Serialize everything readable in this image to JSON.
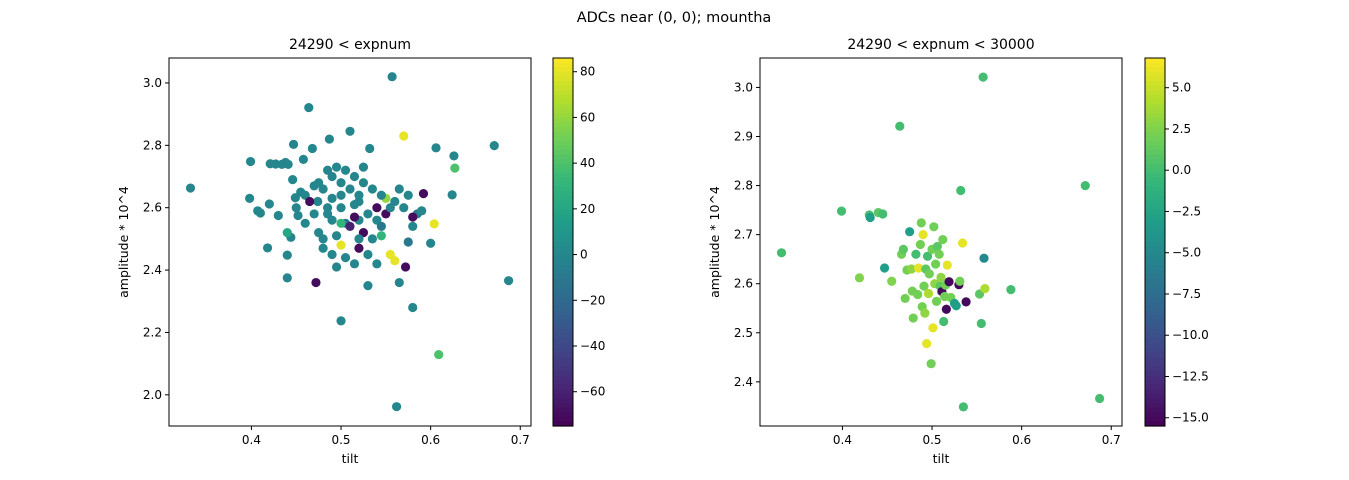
{
  "suptitle": "ADCs near (0, 0); mountha",
  "chart_data": [
    {
      "type": "scatter",
      "title": "24290 < expnum",
      "xlabel": "tilt",
      "ylabel": "amplitude * 10^4",
      "xlim": [
        0.308,
        0.712
      ],
      "ylim": [
        1.9,
        3.08
      ],
      "xticks": [
        0.4,
        0.5,
        0.6,
        0.7
      ],
      "yticks": [
        2.0,
        2.2,
        2.4,
        2.6,
        2.8,
        3.0
      ],
      "colormap": "viridis",
      "color_range": [
        -75,
        86
      ],
      "colorbar_ticks": [
        -60,
        -40,
        -20,
        0,
        20,
        40,
        60,
        80
      ],
      "points": [
        {
          "x": 0.332,
          "y": 2.663,
          "c": 0
        },
        {
          "x": 0.398,
          "y": 2.63,
          "c": 0
        },
        {
          "x": 0.399,
          "y": 2.748,
          "c": 0
        },
        {
          "x": 0.407,
          "y": 2.59,
          "c": 0
        },
        {
          "x": 0.41,
          "y": 2.583,
          "c": 0
        },
        {
          "x": 0.418,
          "y": 2.471,
          "c": 0
        },
        {
          "x": 0.42,
          "y": 2.612,
          "c": 0
        },
        {
          "x": 0.421,
          "y": 2.741,
          "c": 0
        },
        {
          "x": 0.427,
          "y": 2.74,
          "c": 0
        },
        {
          "x": 0.43,
          "y": 2.575,
          "c": 0
        },
        {
          "x": 0.434,
          "y": 2.739,
          "c": 0
        },
        {
          "x": 0.438,
          "y": 2.745,
          "c": 0
        },
        {
          "x": 0.441,
          "y": 2.739,
          "c": 0
        },
        {
          "x": 0.44,
          "y": 2.375,
          "c": 0
        },
        {
          "x": 0.44,
          "y": 2.448,
          "c": 0
        },
        {
          "x": 0.444,
          "y": 2.505,
          "c": 0
        },
        {
          "x": 0.446,
          "y": 2.69,
          "c": 0
        },
        {
          "x": 0.447,
          "y": 2.803,
          "c": 0
        },
        {
          "x": 0.449,
          "y": 2.632,
          "c": 0
        },
        {
          "x": 0.452,
          "y": 2.575,
          "c": 0
        },
        {
          "x": 0.458,
          "y": 2.755,
          "c": 0
        },
        {
          "x": 0.464,
          "y": 2.921,
          "c": 0
        },
        {
          "x": 0.468,
          "y": 2.79,
          "c": 0
        },
        {
          "x": 0.47,
          "y": 2.67,
          "c": 0
        },
        {
          "x": 0.472,
          "y": 2.36,
          "c": -70
        },
        {
          "x": 0.474,
          "y": 2.62,
          "c": 0
        },
        {
          "x": 0.48,
          "y": 2.5,
          "c": 0
        },
        {
          "x": 0.485,
          "y": 2.58,
          "c": 0
        },
        {
          "x": 0.487,
          "y": 2.82,
          "c": 0
        },
        {
          "x": 0.49,
          "y": 2.63,
          "c": 0
        },
        {
          "x": 0.495,
          "y": 2.41,
          "c": 0
        },
        {
          "x": 0.5,
          "y": 2.237,
          "c": 0
        },
        {
          "x": 0.505,
          "y": 2.55,
          "c": -10
        },
        {
          "x": 0.51,
          "y": 2.845,
          "c": 0
        },
        {
          "x": 0.515,
          "y": 2.61,
          "c": 0
        },
        {
          "x": 0.52,
          "y": 2.47,
          "c": -70
        },
        {
          "x": 0.525,
          "y": 2.73,
          "c": 0
        },
        {
          "x": 0.53,
          "y": 2.35,
          "c": 0
        },
        {
          "x": 0.532,
          "y": 2.79,
          "c": 0
        },
        {
          "x": 0.54,
          "y": 2.6,
          "c": -70
        },
        {
          "x": 0.545,
          "y": 2.51,
          "c": 30
        },
        {
          "x": 0.55,
          "y": 2.63,
          "c": 60
        },
        {
          "x": 0.555,
          "y": 2.45,
          "c": 80
        },
        {
          "x": 0.557,
          "y": 3.02,
          "c": 0
        },
        {
          "x": 0.56,
          "y": 2.43,
          "c": 80
        },
        {
          "x": 0.562,
          "y": 1.962,
          "c": 0
        },
        {
          "x": 0.565,
          "y": 2.36,
          "c": 0
        },
        {
          "x": 0.57,
          "y": 2.83,
          "c": 80
        },
        {
          "x": 0.572,
          "y": 2.41,
          "c": -70
        },
        {
          "x": 0.575,
          "y": 2.49,
          "c": -10
        },
        {
          "x": 0.58,
          "y": 2.28,
          "c": 0
        },
        {
          "x": 0.585,
          "y": 2.58,
          "c": -10
        },
        {
          "x": 0.592,
          "y": 2.645,
          "c": -70
        },
        {
          "x": 0.6,
          "y": 2.486,
          "c": 0
        },
        {
          "x": 0.604,
          "y": 2.548,
          "c": 80
        },
        {
          "x": 0.606,
          "y": 2.792,
          "c": 0
        },
        {
          "x": 0.609,
          "y": 2.129,
          "c": 40
        },
        {
          "x": 0.624,
          "y": 2.641,
          "c": 0
        },
        {
          "x": 0.626,
          "y": 2.766,
          "c": 0
        },
        {
          "x": 0.627,
          "y": 2.727,
          "c": 40
        },
        {
          "x": 0.671,
          "y": 2.799,
          "c": 0
        },
        {
          "x": 0.687,
          "y": 2.366,
          "c": 0
        },
        {
          "x": 0.48,
          "y": 2.66,
          "c": 0
        },
        {
          "x": 0.49,
          "y": 2.7,
          "c": 0
        },
        {
          "x": 0.5,
          "y": 2.68,
          "c": 0
        },
        {
          "x": 0.51,
          "y": 2.66,
          "c": 0
        },
        {
          "x": 0.52,
          "y": 2.62,
          "c": 0
        },
        {
          "x": 0.53,
          "y": 2.58,
          "c": 0
        },
        {
          "x": 0.5,
          "y": 2.6,
          "c": 0
        },
        {
          "x": 0.49,
          "y": 2.56,
          "c": 0
        },
        {
          "x": 0.51,
          "y": 2.54,
          "c": -60
        },
        {
          "x": 0.52,
          "y": 2.56,
          "c": 0
        },
        {
          "x": 0.47,
          "y": 2.58,
          "c": 0
        },
        {
          "x": 0.46,
          "y": 2.64,
          "c": 0
        },
        {
          "x": 0.54,
          "y": 2.56,
          "c": 0
        },
        {
          "x": 0.55,
          "y": 2.58,
          "c": -70
        },
        {
          "x": 0.56,
          "y": 2.62,
          "c": 0
        },
        {
          "x": 0.565,
          "y": 2.66,
          "c": 0
        },
        {
          "x": 0.57,
          "y": 2.6,
          "c": 0
        },
        {
          "x": 0.58,
          "y": 2.54,
          "c": 0
        },
        {
          "x": 0.5,
          "y": 2.48,
          "c": 80
        },
        {
          "x": 0.49,
          "y": 2.45,
          "c": 0
        },
        {
          "x": 0.48,
          "y": 2.47,
          "c": 0
        },
        {
          "x": 0.505,
          "y": 2.44,
          "c": 0
        },
        {
          "x": 0.515,
          "y": 2.42,
          "c": 0
        },
        {
          "x": 0.53,
          "y": 2.45,
          "c": 0
        },
        {
          "x": 0.54,
          "y": 2.42,
          "c": 0
        },
        {
          "x": 0.475,
          "y": 2.52,
          "c": 0
        },
        {
          "x": 0.46,
          "y": 2.55,
          "c": 0
        },
        {
          "x": 0.465,
          "y": 2.62,
          "c": -70
        },
        {
          "x": 0.485,
          "y": 2.72,
          "c": 0
        },
        {
          "x": 0.495,
          "y": 2.73,
          "c": 0
        },
        {
          "x": 0.505,
          "y": 2.72,
          "c": 0
        },
        {
          "x": 0.515,
          "y": 2.7,
          "c": 0
        },
        {
          "x": 0.525,
          "y": 2.68,
          "c": 0
        },
        {
          "x": 0.535,
          "y": 2.66,
          "c": 0
        },
        {
          "x": 0.545,
          "y": 2.64,
          "c": 0
        },
        {
          "x": 0.555,
          "y": 2.6,
          "c": 0
        },
        {
          "x": 0.525,
          "y": 2.52,
          "c": -70
        },
        {
          "x": 0.535,
          "y": 2.5,
          "c": 0
        },
        {
          "x": 0.545,
          "y": 2.54,
          "c": -10
        },
        {
          "x": 0.495,
          "y": 2.51,
          "c": 0
        },
        {
          "x": 0.485,
          "y": 2.6,
          "c": 0
        },
        {
          "x": 0.475,
          "y": 2.68,
          "c": 0
        },
        {
          "x": 0.45,
          "y": 2.6,
          "c": 0
        },
        {
          "x": 0.44,
          "y": 2.52,
          "c": 20
        },
        {
          "x": 0.455,
          "y": 2.65,
          "c": 0
        },
        {
          "x": 0.515,
          "y": 2.57,
          "c": -70
        },
        {
          "x": 0.52,
          "y": 2.5,
          "c": 0
        },
        {
          "x": 0.575,
          "y": 2.64,
          "c": 0
        },
        {
          "x": 0.58,
          "y": 2.57,
          "c": -70
        },
        {
          "x": 0.59,
          "y": 2.59,
          "c": 0
        },
        {
          "x": 0.5,
          "y": 2.64,
          "c": 0
        },
        {
          "x": 0.52,
          "y": 2.64,
          "c": 0
        },
        {
          "x": 0.5,
          "y": 2.55,
          "c": 30
        }
      ]
    },
    {
      "type": "scatter",
      "title": "24290 < expnum < 30000",
      "xlabel": "tilt",
      "ylabel": "amplitude * 10^4",
      "xlim": [
        0.308,
        0.712
      ],
      "ylim": [
        2.31,
        3.06
      ],
      "xticks": [
        0.4,
        0.5,
        0.6,
        0.7
      ],
      "yticks": [
        2.4,
        2.5,
        2.6,
        2.7,
        2.8,
        2.9,
        3.0
      ],
      "colormap": "viridis",
      "color_range": [
        -15.5,
        6.8
      ],
      "colorbar_ticks": [
        -15.0,
        -12.5,
        -10.0,
        -7.5,
        -5.0,
        -2.5,
        0.0,
        2.5,
        5.0
      ],
      "points": [
        {
          "x": 0.332,
          "y": 2.663,
          "c": 0
        },
        {
          "x": 0.399,
          "y": 2.748,
          "c": 0
        },
        {
          "x": 0.419,
          "y": 2.612,
          "c": 2.5
        },
        {
          "x": 0.43,
          "y": 2.74,
          "c": 0
        },
        {
          "x": 0.431,
          "y": 2.735,
          "c": -3
        },
        {
          "x": 0.44,
          "y": 2.745,
          "c": 1
        },
        {
          "x": 0.445,
          "y": 2.742,
          "c": 0
        },
        {
          "x": 0.447,
          "y": 2.632,
          "c": -3
        },
        {
          "x": 0.455,
          "y": 2.605,
          "c": 2.5
        },
        {
          "x": 0.464,
          "y": 2.921,
          "c": 0
        },
        {
          "x": 0.466,
          "y": 2.66,
          "c": 2
        },
        {
          "x": 0.468,
          "y": 2.67,
          "c": 1
        },
        {
          "x": 0.47,
          "y": 2.57,
          "c": 2
        },
        {
          "x": 0.472,
          "y": 2.628,
          "c": 2
        },
        {
          "x": 0.475,
          "y": 2.706,
          "c": -3
        },
        {
          "x": 0.477,
          "y": 2.63,
          "c": 3
        },
        {
          "x": 0.478,
          "y": 2.585,
          "c": 2
        },
        {
          "x": 0.479,
          "y": 2.53,
          "c": 2
        },
        {
          "x": 0.482,
          "y": 2.66,
          "c": 0
        },
        {
          "x": 0.484,
          "y": 2.578,
          "c": 2
        },
        {
          "x": 0.485,
          "y": 2.632,
          "c": 6
        },
        {
          "x": 0.487,
          "y": 2.68,
          "c": 2
        },
        {
          "x": 0.488,
          "y": 2.724,
          "c": 2
        },
        {
          "x": 0.489,
          "y": 2.553,
          "c": 2
        },
        {
          "x": 0.49,
          "y": 2.7,
          "c": 6
        },
        {
          "x": 0.491,
          "y": 2.595,
          "c": 2
        },
        {
          "x": 0.492,
          "y": 2.54,
          "c": 3
        },
        {
          "x": 0.493,
          "y": 2.63,
          "c": 1
        },
        {
          "x": 0.494,
          "y": 2.478,
          "c": 6
        },
        {
          "x": 0.495,
          "y": 2.656,
          "c": 0
        },
        {
          "x": 0.496,
          "y": 2.58,
          "c": 4
        },
        {
          "x": 0.497,
          "y": 2.62,
          "c": 2
        },
        {
          "x": 0.499,
          "y": 2.437,
          "c": 2
        },
        {
          "x": 0.5,
          "y": 2.67,
          "c": 2
        },
        {
          "x": 0.501,
          "y": 2.51,
          "c": 6
        },
        {
          "x": 0.502,
          "y": 2.716,
          "c": 2
        },
        {
          "x": 0.503,
          "y": 2.6,
          "c": 3
        },
        {
          "x": 0.504,
          "y": 2.64,
          "c": 2
        },
        {
          "x": 0.505,
          "y": 2.564,
          "c": 2
        },
        {
          "x": 0.506,
          "y": 2.676,
          "c": 1
        },
        {
          "x": 0.508,
          "y": 2.66,
          "c": 2
        },
        {
          "x": 0.509,
          "y": 2.595,
          "c": 1
        },
        {
          "x": 0.51,
          "y": 2.613,
          "c": 3
        },
        {
          "x": 0.511,
          "y": 2.584,
          "c": -15
        },
        {
          "x": 0.512,
          "y": 2.69,
          "c": 2
        },
        {
          "x": 0.513,
          "y": 2.523,
          "c": 0
        },
        {
          "x": 0.514,
          "y": 2.574,
          "c": 2
        },
        {
          "x": 0.515,
          "y": 2.597,
          "c": 2
        },
        {
          "x": 0.516,
          "y": 2.548,
          "c": -15
        },
        {
          "x": 0.517,
          "y": 2.638,
          "c": 6
        },
        {
          "x": 0.519,
          "y": 2.604,
          "c": -15
        },
        {
          "x": 0.521,
          "y": 2.572,
          "c": 2
        },
        {
          "x": 0.525,
          "y": 2.56,
          "c": -3
        },
        {
          "x": 0.527,
          "y": 2.555,
          "c": -3
        },
        {
          "x": 0.53,
          "y": 2.598,
          "c": -15
        },
        {
          "x": 0.531,
          "y": 2.605,
          "c": 2
        },
        {
          "x": 0.532,
          "y": 2.79,
          "c": 0
        },
        {
          "x": 0.534,
          "y": 2.683,
          "c": 6
        },
        {
          "x": 0.535,
          "y": 2.349,
          "c": 0
        },
        {
          "x": 0.538,
          "y": 2.563,
          "c": -15
        },
        {
          "x": 0.553,
          "y": 2.579,
          "c": 1
        },
        {
          "x": 0.555,
          "y": 2.519,
          "c": 0
        },
        {
          "x": 0.557,
          "y": 3.021,
          "c": 0
        },
        {
          "x": 0.558,
          "y": 2.652,
          "c": -5
        },
        {
          "x": 0.559,
          "y": 2.59,
          "c": 4
        },
        {
          "x": 0.588,
          "y": 2.588,
          "c": 0
        },
        {
          "x": 0.671,
          "y": 2.8,
          "c": 0
        },
        {
          "x": 0.687,
          "y": 2.366,
          "c": 0
        }
      ]
    }
  ]
}
